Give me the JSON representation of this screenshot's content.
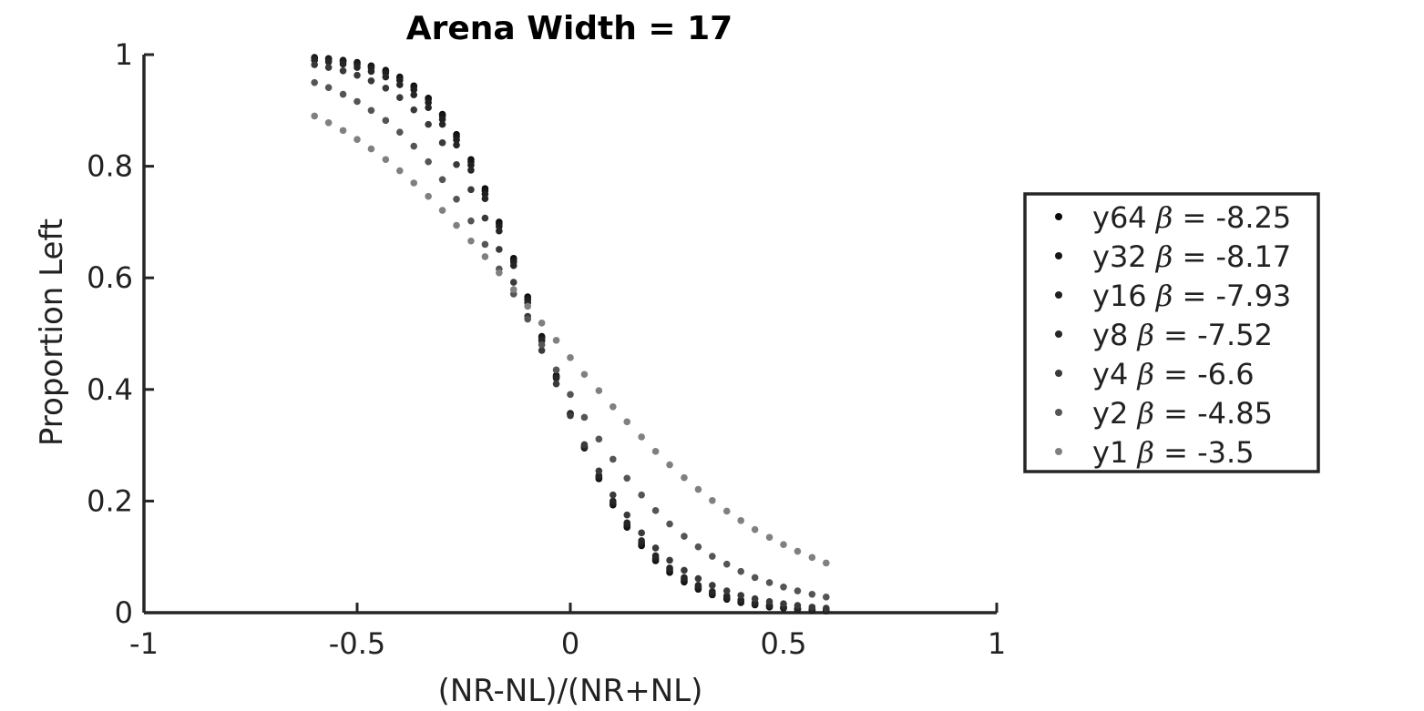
{
  "chart_data": {
    "type": "scatter",
    "title": "Arena Width =  17",
    "xlabel": "(NR-NL)/(NR+NL)",
    "ylabel": "Proportion Left",
    "xlim": [
      -1,
      1
    ],
    "ylim": [
      0,
      1
    ],
    "xticks": [
      -1,
      -0.5,
      0,
      0.5,
      1
    ],
    "xtick_labels": [
      "-1",
      "-0.5",
      "0",
      "0.5",
      "1"
    ],
    "yticks": [
      0,
      0.2,
      0.4,
      0.6,
      0.8,
      1
    ],
    "ytick_labels": [
      "0",
      "0.2",
      "0.4",
      "0.6",
      "0.8",
      "1"
    ],
    "grid": false,
    "legend_position": "right",
    "x": [
      -0.6,
      -0.567,
      -0.533,
      -0.5,
      -0.467,
      -0.433,
      -0.4,
      -0.367,
      -0.333,
      -0.3,
      -0.267,
      -0.233,
      -0.2,
      -0.167,
      -0.133,
      -0.1,
      -0.067,
      -0.033,
      0.0,
      0.033,
      0.067,
      0.1,
      0.133,
      0.167,
      0.2,
      0.233,
      0.267,
      0.3,
      0.333,
      0.367,
      0.4,
      0.433,
      0.467,
      0.5,
      0.533,
      0.567,
      0.6
    ],
    "series": [
      {
        "name": "y64",
        "beta_label": "-8.25",
        "color": "#0a0a0a",
        "values": [
          0.995,
          0.993,
          0.99,
          0.986,
          0.98,
          0.972,
          0.96,
          0.944,
          0.922,
          0.893,
          0.857,
          0.812,
          0.76,
          0.7,
          0.635,
          0.566,
          0.495,
          0.425,
          0.357,
          0.295,
          0.24,
          0.193,
          0.153,
          0.12,
          0.093,
          0.072,
          0.055,
          0.042,
          0.032,
          0.024,
          0.018,
          0.014,
          0.01,
          0.008,
          0.006,
          0.004,
          0.003
        ]
      },
      {
        "name": "y32",
        "beta_label": "-8.17",
        "color": "#161616",
        "values": [
          0.994,
          0.992,
          0.989,
          0.985,
          0.979,
          0.97,
          0.958,
          0.942,
          0.92,
          0.89,
          0.853,
          0.808,
          0.756,
          0.697,
          0.632,
          0.563,
          0.493,
          0.423,
          0.357,
          0.296,
          0.242,
          0.195,
          0.155,
          0.122,
          0.095,
          0.074,
          0.057,
          0.044,
          0.033,
          0.025,
          0.019,
          0.015,
          0.011,
          0.008,
          0.006,
          0.005,
          0.004
        ]
      },
      {
        "name": "y16",
        "beta_label": "-7.93",
        "color": "#1f1f1f",
        "values": [
          0.993,
          0.99,
          0.987,
          0.982,
          0.976,
          0.967,
          0.954,
          0.937,
          0.914,
          0.884,
          0.847,
          0.802,
          0.75,
          0.692,
          0.628,
          0.56,
          0.49,
          0.422,
          0.356,
          0.297,
          0.244,
          0.197,
          0.158,
          0.125,
          0.098,
          0.077,
          0.06,
          0.046,
          0.035,
          0.027,
          0.021,
          0.016,
          0.012,
          0.009,
          0.007,
          0.005,
          0.004
        ]
      },
      {
        "name": "y8",
        "beta_label": "-7.52",
        "color": "#262626",
        "values": [
          0.99,
          0.987,
          0.983,
          0.977,
          0.97,
          0.96,
          0.946,
          0.928,
          0.905,
          0.875,
          0.838,
          0.793,
          0.742,
          0.684,
          0.622,
          0.555,
          0.487,
          0.42,
          0.356,
          0.298,
          0.246,
          0.2,
          0.161,
          0.129,
          0.102,
          0.08,
          0.063,
          0.049,
          0.038,
          0.03,
          0.023,
          0.018,
          0.014,
          0.01,
          0.008,
          0.006,
          0.005
        ]
      },
      {
        "name": "y4",
        "beta_label": "-6.6",
        "color": "#3a3a3a",
        "values": [
          0.982,
          0.977,
          0.971,
          0.963,
          0.953,
          0.94,
          0.923,
          0.901,
          0.875,
          0.842,
          0.803,
          0.758,
          0.707,
          0.651,
          0.592,
          0.531,
          0.47,
          0.41,
          0.353,
          0.301,
          0.254,
          0.211,
          0.175,
          0.143,
          0.116,
          0.094,
          0.076,
          0.061,
          0.049,
          0.039,
          0.031,
          0.025,
          0.02,
          0.016,
          0.013,
          0.01,
          0.008
        ]
      },
      {
        "name": "y2",
        "beta_label": "-4.85",
        "color": "#555555",
        "values": [
          0.95,
          0.941,
          0.929,
          0.916,
          0.9,
          0.882,
          0.861,
          0.836,
          0.808,
          0.776,
          0.741,
          0.702,
          0.66,
          0.616,
          0.571,
          0.526,
          0.48,
          0.435,
          0.391,
          0.35,
          0.311,
          0.275,
          0.241,
          0.211,
          0.183,
          0.159,
          0.137,
          0.118,
          0.101,
          0.087,
          0.074,
          0.063,
          0.054,
          0.046,
          0.039,
          0.033,
          0.028
        ]
      },
      {
        "name": "y1",
        "beta_label": "-3.5",
        "color": "#808080",
        "values": [
          0.89,
          0.878,
          0.864,
          0.848,
          0.831,
          0.812,
          0.792,
          0.77,
          0.746,
          0.721,
          0.694,
          0.666,
          0.638,
          0.609,
          0.579,
          0.549,
          0.519,
          0.488,
          0.457,
          0.427,
          0.398,
          0.369,
          0.342,
          0.315,
          0.289,
          0.265,
          0.242,
          0.221,
          0.201,
          0.182,
          0.165,
          0.149,
          0.135,
          0.122,
          0.11,
          0.099,
          0.089
        ]
      }
    ]
  },
  "legend": {
    "beta_symbol": "β",
    "entries": [
      {
        "name": "y64",
        "eq": "= ",
        "value": "-8.25"
      },
      {
        "name": "y32",
        "eq": "= ",
        "value": "-8.17"
      },
      {
        "name": "y16",
        "eq": "= ",
        "value": "-7.93"
      },
      {
        "name": "y8",
        "eq": "= ",
        "value": "-7.52"
      },
      {
        "name": "y4",
        "eq": "= ",
        "value": "-6.6"
      },
      {
        "name": "y2",
        "eq": "= ",
        "value": "-4.85"
      },
      {
        "name": "y1",
        "eq": "= ",
        "value": "-3.5"
      }
    ]
  }
}
